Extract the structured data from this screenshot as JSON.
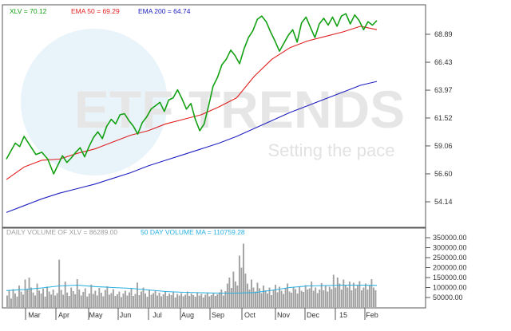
{
  "watermark": {
    "logo": "ETF TRENDS",
    "tagline": "Setting the pace"
  },
  "legend": {
    "price": {
      "label": "XLV = 70.12",
      "color": "#14a014"
    },
    "ema50": {
      "label": "EMA 50 = 69.29",
      "color": "#e02020"
    },
    "ema200": {
      "label": "EMA 200 = 64.74",
      "color": "#2020c0"
    }
  },
  "volume_legend": {
    "volume": {
      "label": "DAILY VOLUME OF XLV = 86289.00",
      "color": "#a0a0a0"
    },
    "volume_ma": {
      "label": "50 DAY VOLUME MA = 110759.28",
      "color": "#2ab0e0"
    }
  },
  "price_axis": {
    "ticks": [
      "68.89",
      "66.43",
      "63.97",
      "61.52",
      "59.06",
      "56.60",
      "54.14"
    ]
  },
  "volume_axis": {
    "ticks": [
      "350000.00",
      "300000.00",
      "250000.00",
      "200000.00",
      "150000.00",
      "100000.00",
      "50000.00"
    ]
  },
  "x_axis": {
    "labels": [
      "Mar",
      "Apr",
      "May",
      "Jun",
      "Jul",
      "Aug",
      "Sep",
      "Oct",
      "Nov",
      "Dec",
      "15",
      "Feb"
    ]
  },
  "chart_data": [
    {
      "type": "line",
      "panel": "price",
      "x_labels": [
        "Mar",
        "Apr",
        "May",
        "Jun",
        "Jul",
        "Aug",
        "Sep",
        "Oct",
        "Nov",
        "Dec",
        "15",
        "Feb"
      ],
      "ylim": [
        52.6,
        71.0
      ],
      "ytick_values": [
        68.89,
        66.43,
        63.97,
        61.52,
        59.06,
        56.6,
        54.14
      ],
      "grid": false,
      "legend_position": "top-left",
      "series": [
        {
          "name": "XLV = 70.12",
          "color": "#14a014",
          "x": [
            0,
            3,
            6,
            9,
            12,
            16,
            20,
            24,
            28,
            32,
            35,
            38,
            41,
            44,
            47,
            50,
            53,
            56,
            59,
            62,
            65,
            68,
            71,
            74,
            77,
            80,
            83,
            86,
            89,
            92,
            95,
            98,
            101,
            104,
            107,
            110,
            113,
            116,
            119,
            122,
            125,
            128,
            131,
            134,
            137,
            140,
            143,
            146,
            149,
            152,
            155,
            158,
            161,
            164,
            167,
            170,
            173,
            176,
            179,
            182,
            185,
            188,
            191,
            194,
            197,
            200,
            203,
            206,
            209,
            212,
            215,
            218,
            221,
            224,
            227,
            230,
            233,
            236,
            239,
            242,
            245,
            248,
            251
          ],
          "y": [
            57.9,
            58.6,
            59.3,
            59.0,
            59.9,
            59.1,
            58.3,
            58.5,
            57.9,
            56.6,
            57.4,
            58.2,
            57.6,
            58.0,
            58.5,
            58.9,
            58.1,
            59.0,
            59.8,
            60.3,
            59.7,
            60.8,
            61.4,
            61.0,
            61.8,
            61.9,
            61.3,
            60.8,
            60.1,
            61.1,
            61.6,
            62.3,
            62.6,
            62.9,
            62.1,
            63.1,
            63.3,
            64.0,
            63.2,
            62.3,
            62.8,
            61.4,
            60.4,
            61.0,
            62.6,
            64.3,
            65.1,
            66.2,
            66.7,
            67.5,
            67.0,
            66.3,
            67.6,
            68.6,
            69.2,
            70.2,
            70.5,
            70.0,
            69.1,
            68.3,
            67.4,
            68.1,
            68.8,
            69.3,
            68.2,
            69.9,
            70.4,
            69.5,
            68.6,
            69.8,
            70.3,
            69.7,
            70.4,
            69.6,
            70.5,
            70.7,
            69.8,
            70.6,
            70.1,
            69.3,
            70.0,
            69.7,
            70.1
          ]
        },
        {
          "name": "EMA 50 = 69.29",
          "color": "#e02020",
          "x": [
            0,
            12,
            24,
            36,
            48,
            60,
            72,
            84,
            96,
            108,
            120,
            132,
            144,
            156,
            168,
            180,
            192,
            204,
            216,
            228,
            240,
            251
          ],
          "y": [
            56.1,
            57.2,
            57.8,
            57.9,
            58.4,
            58.8,
            59.4,
            60.0,
            60.4,
            61.0,
            61.4,
            61.8,
            62.5,
            63.3,
            65.2,
            66.7,
            67.7,
            68.3,
            68.7,
            69.1,
            69.6,
            69.3
          ]
        },
        {
          "name": "EMA 200 = 64.74",
          "color": "#2020c0",
          "x": [
            0,
            12,
            24,
            36,
            48,
            60,
            72,
            84,
            96,
            108,
            120,
            132,
            144,
            156,
            168,
            180,
            192,
            204,
            216,
            228,
            240,
            251
          ],
          "y": [
            53.2,
            53.8,
            54.4,
            54.9,
            55.3,
            55.7,
            56.2,
            56.7,
            57.3,
            57.8,
            58.3,
            58.8,
            59.3,
            59.9,
            60.6,
            61.3,
            62.0,
            62.6,
            63.2,
            63.8,
            64.4,
            64.74
          ]
        }
      ]
    },
    {
      "type": "bar",
      "panel": "volume",
      "ylim": [
        0,
        375000
      ],
      "ytick_values": [
        350000,
        300000,
        250000,
        200000,
        150000,
        100000,
        50000
      ],
      "grid": false,
      "legend_position": "top-left",
      "series": [
        {
          "name": "DAILY VOLUME OF XLV = 86289.00",
          "color": "#a0a0a0",
          "values": [
            60000,
            85000,
            45000,
            92000,
            70000,
            55000,
            110000,
            80000,
            65000,
            140000,
            90000,
            150000,
            100000,
            75000,
            60000,
            120000,
            85000,
            70000,
            95000,
            55000,
            105000,
            80000,
            65000,
            90000,
            60000,
            72000,
            240000,
            88000,
            64000,
            130000,
            75000,
            58000,
            100000,
            82000,
            67000,
            142000,
            90000,
            60000,
            78000,
            96000,
            55000,
            70000,
            115000,
            68000,
            84000,
            60000,
            98000,
            74000,
            56000,
            88000,
            106000,
            64000,
            72000,
            92000,
            58000,
            66000,
            80000,
            52000,
            70000,
            84000,
            60000,
            76000,
            94000,
            58000,
            68000,
            125000,
            62000,
            80000,
            100000,
            70000,
            54000,
            90000,
            64000,
            72000,
            86000,
            60000,
            74000,
            56000,
            66000,
            82000,
            58000,
            70000,
            62000,
            76000,
            50000,
            68000,
            60000,
            72000,
            56000,
            64000,
            80000,
            58000,
            70000,
            62000,
            54000,
            74000,
            60000,
            68000,
            50000,
            64000,
            72000,
            56000,
            62000,
            70000,
            58000,
            66000,
            76000,
            90000,
            60000,
            82000,
            120000,
            150000,
            98000,
            180000,
            130000,
            110000,
            260000,
            200000,
            320000,
            170000,
            120000,
            90000,
            140000,
            100000,
            80000,
            124000,
            96000,
            72000,
            110000,
            86000,
            70000,
            100000,
            62000,
            90000,
            114000,
            76000,
            104000,
            84000,
            68000,
            96000,
            120000,
            80000,
            74000,
            100000,
            92000,
            70000,
            106000,
            84000,
            78000,
            112000,
            90000,
            96000,
            130000,
            84000,
            100000,
            72000,
            90000,
            122000,
            86000,
            110000,
            80000,
            104000,
            92000,
            164000,
            100000,
            150000,
            120000,
            90000,
            140000,
            110000,
            100000,
            130000,
            86000,
            124000,
            96000,
            112000,
            132000,
            86000,
            100000,
            120000,
            90000,
            110000,
            142000,
            100000,
            86289
          ]
        },
        {
          "name": "50 DAY VOLUME MA = 110759.28",
          "color": "#2ab0e0",
          "x": [
            0,
            12,
            24,
            36,
            48,
            60,
            72,
            84,
            96,
            108,
            120,
            132,
            144,
            156,
            168,
            180,
            192,
            204,
            216,
            228,
            240,
            251
          ],
          "y": [
            85000,
            90000,
            98000,
            108000,
            112000,
            105000,
            100000,
            96000,
            88000,
            80000,
            76000,
            74000,
            72000,
            72000,
            75000,
            86000,
            100000,
            108000,
            110000,
            112000,
            112000,
            110759.28
          ]
        }
      ]
    }
  ]
}
